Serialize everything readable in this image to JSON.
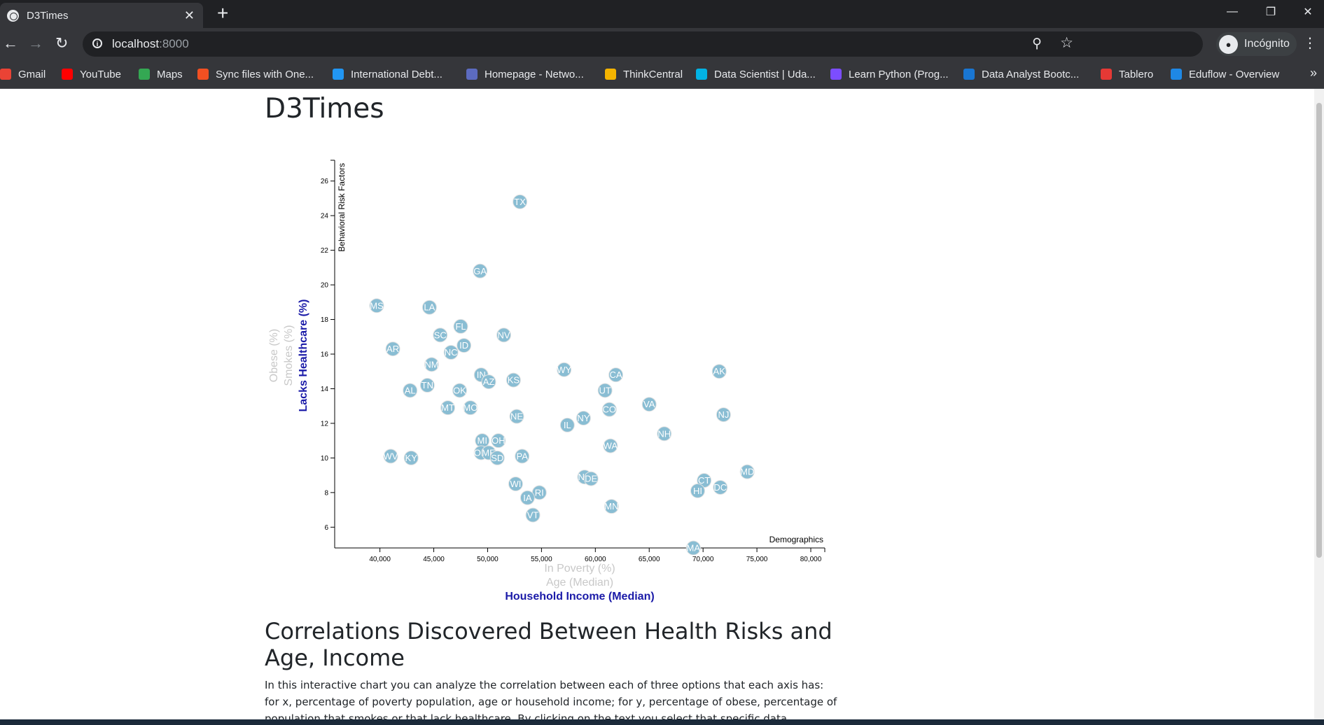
{
  "browser": {
    "tab": {
      "title": "D3Times"
    },
    "address": {
      "host": "localhost",
      "port": ":8000"
    },
    "profile": {
      "label": "Incógnito"
    },
    "bookmarks": [
      {
        "label": "Gmail",
        "color": "#ea4335"
      },
      {
        "label": "YouTube",
        "color": "#ff0000"
      },
      {
        "label": "Maps",
        "color": "#34a853"
      },
      {
        "label": "Sync files with One...",
        "color": "#f25022"
      },
      {
        "label": "International Debt...",
        "color": "#2196f3"
      },
      {
        "label": "Homepage - Netwo...",
        "color": "#5c6bc0"
      },
      {
        "label": "ThinkCentral",
        "color": "#f4b400"
      },
      {
        "label": "Data Scientist | Uda...",
        "color": "#02b3e4"
      },
      {
        "label": "Learn Python (Prog...",
        "color": "#7c4dff"
      },
      {
        "label": "Data Analyst Bootc...",
        "color": "#1976d2"
      },
      {
        "label": "Tablero",
        "color": "#e53935"
      },
      {
        "label": "Eduflow - Overview",
        "color": "#1e88e5"
      }
    ]
  },
  "page": {
    "title": "D3Times",
    "section_title": "Correlations Discovered Between Health Risks and Age, Income",
    "description": "In this interactive chart you can analyze the correlation between each of three options that each axis has: for x, percentage of poverty population, age or household income; for y, percentage of obese, percentage of population that smokes or that lack healthcare. By clicking on the text you select that specific data."
  },
  "chart_data": {
    "type": "scatter",
    "title": "",
    "x_axis": {
      "range": [
        35800,
        81300
      ],
      "ticks": [
        40000,
        45000,
        50000,
        55000,
        60000,
        65000,
        70000,
        75000,
        80000
      ],
      "tick_labels": [
        "40,000",
        "45,000",
        "50,000",
        "55,000",
        "60,000",
        "65,000",
        "70,000",
        "75,000",
        "80,000"
      ],
      "options": [
        {
          "label": "In Poverty (%)",
          "active": false
        },
        {
          "label": "Age (Median)",
          "active": false
        },
        {
          "label": "Household Income (Median)",
          "active": true
        }
      ]
    },
    "y_axis": {
      "range": [
        4.8,
        27.2
      ],
      "ticks": [
        6,
        8,
        10,
        12,
        14,
        16,
        18,
        20,
        22,
        24,
        26
      ],
      "options": [
        {
          "label": "Obese (%)",
          "active": false
        },
        {
          "label": "Smokes (%)",
          "active": false
        },
        {
          "label": "Lacks Healthcare (%)",
          "active": true
        }
      ]
    },
    "annotations": {
      "y_axis": "Behavioral Risk Factors",
      "x_axis": "Demographics"
    },
    "points": [
      {
        "abbr": "TX",
        "x": 53000,
        "y": 24.8
      },
      {
        "abbr": "GA",
        "x": 49300,
        "y": 20.8
      },
      {
        "abbr": "MS",
        "x": 39700,
        "y": 18.8
      },
      {
        "abbr": "LA",
        "x": 44600,
        "y": 18.7
      },
      {
        "abbr": "FL",
        "x": 47500,
        "y": 17.6
      },
      {
        "abbr": "SC",
        "x": 45600,
        "y": 17.1
      },
      {
        "abbr": "NV",
        "x": 51500,
        "y": 17.1
      },
      {
        "abbr": "AR",
        "x": 41200,
        "y": 16.3
      },
      {
        "abbr": "ID",
        "x": 47800,
        "y": 16.5
      },
      {
        "abbr": "NC",
        "x": 46600,
        "y": 16.1
      },
      {
        "abbr": "NM",
        "x": 44800,
        "y": 15.4
      },
      {
        "abbr": "WY",
        "x": 57100,
        "y": 15.1
      },
      {
        "abbr": "AK",
        "x": 71500,
        "y": 15.0
      },
      {
        "abbr": "IN",
        "x": 49400,
        "y": 14.8
      },
      {
        "abbr": "CA",
        "x": 61900,
        "y": 14.8
      },
      {
        "abbr": "AZ",
        "x": 50100,
        "y": 14.4
      },
      {
        "abbr": "KS",
        "x": 52400,
        "y": 14.5
      },
      {
        "abbr": "TN",
        "x": 44400,
        "y": 14.2
      },
      {
        "abbr": "AL",
        "x": 42800,
        "y": 13.9
      },
      {
        "abbr": "OK",
        "x": 47400,
        "y": 13.9
      },
      {
        "abbr": "UT",
        "x": 60900,
        "y": 13.9
      },
      {
        "abbr": "VA",
        "x": 65000,
        "y": 13.1
      },
      {
        "abbr": "MT",
        "x": 46300,
        "y": 12.9
      },
      {
        "abbr": "MO",
        "x": 48400,
        "y": 12.9
      },
      {
        "abbr": "CO",
        "x": 61300,
        "y": 12.8
      },
      {
        "abbr": "NE",
        "x": 52700,
        "y": 12.4
      },
      {
        "abbr": "NJ",
        "x": 71900,
        "y": 12.5
      },
      {
        "abbr": "NY",
        "x": 58900,
        "y": 12.3
      },
      {
        "abbr": "IL",
        "x": 57400,
        "y": 11.9
      },
      {
        "abbr": "NH",
        "x": 66400,
        "y": 11.4
      },
      {
        "abbr": "MI",
        "x": 49500,
        "y": 11.0
      },
      {
        "abbr": "OH",
        "x": 51000,
        "y": 11.0
      },
      {
        "abbr": "WA",
        "x": 61400,
        "y": 10.7
      },
      {
        "abbr": "OM",
        "x": 49400,
        "y": 10.3
      },
      {
        "abbr": "ME",
        "x": 50100,
        "y": 10.3
      },
      {
        "abbr": "PA",
        "x": 53200,
        "y": 10.1
      },
      {
        "abbr": "SD",
        "x": 50900,
        "y": 10.0
      },
      {
        "abbr": "WV",
        "x": 41000,
        "y": 10.1
      },
      {
        "abbr": "KY",
        "x": 42900,
        "y": 10.0
      },
      {
        "abbr": "MD",
        "x": 74100,
        "y": 9.2
      },
      {
        "abbr": "ND",
        "x": 59000,
        "y": 8.9
      },
      {
        "abbr": "DE",
        "x": 59600,
        "y": 8.8
      },
      {
        "abbr": "CT",
        "x": 70100,
        "y": 8.7
      },
      {
        "abbr": "WI",
        "x": 52600,
        "y": 8.5
      },
      {
        "abbr": "DC",
        "x": 71600,
        "y": 8.3
      },
      {
        "abbr": "HI",
        "x": 69500,
        "y": 8.1
      },
      {
        "abbr": "RI",
        "x": 54800,
        "y": 8.0
      },
      {
        "abbr": "IA",
        "x": 53700,
        "y": 7.7
      },
      {
        "abbr": "MN",
        "x": 61500,
        "y": 7.2
      },
      {
        "abbr": "VT",
        "x": 54200,
        "y": 6.7
      },
      {
        "abbr": "MA",
        "x": 69100,
        "y": 4.8
      }
    ]
  }
}
